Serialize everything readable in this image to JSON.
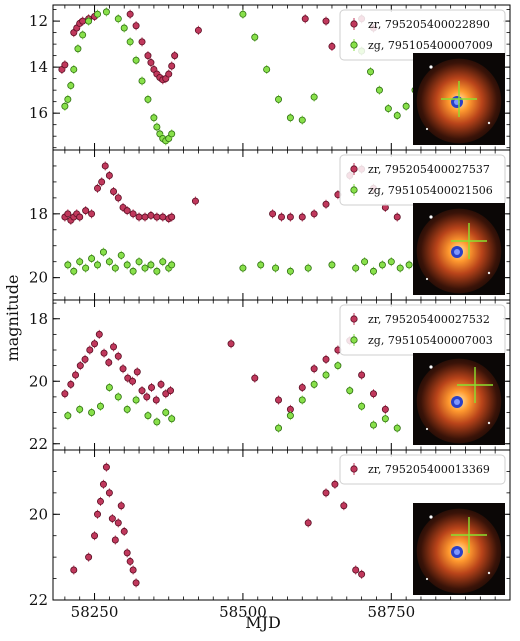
{
  "figure": {
    "xlabel": "MJD",
    "ylabel": "magnitude",
    "x_ticks": [
      "58250",
      "58500",
      "58750"
    ]
  },
  "colors": {
    "zr_face": "#c0385c",
    "zr_edge": "#5a0f24",
    "zg_face": "#88e04a",
    "zg_edge": "#2f6f12"
  },
  "chart_data": [
    {
      "type": "scatter",
      "xlim": [
        58180,
        58950
      ],
      "ylim": [
        11.3,
        17.6
      ],
      "y_ticks": [
        12,
        14,
        16
      ],
      "y_tick_labels": [
        "12",
        "14",
        "16"
      ],
      "inverted_y": true,
      "legend_position": "top-right",
      "inset_thumbnail": true,
      "series": [
        {
          "name": "zr, 795205400022890",
          "band": "zr",
          "x": [
            58195,
            58200,
            58215,
            58220,
            58225,
            58230,
            58240,
            58250,
            58310,
            58320,
            58330,
            58340,
            58345,
            58350,
            58355,
            58360,
            58365,
            58370,
            58375,
            58380,
            58385,
            58425,
            58605,
            58640,
            58650,
            58700,
            58720
          ],
          "y": [
            14.1,
            13.9,
            12.5,
            12.3,
            12.1,
            12.0,
            11.9,
            11.8,
            11.7,
            12.2,
            12.9,
            13.5,
            13.8,
            14.1,
            14.3,
            14.45,
            14.55,
            14.5,
            14.3,
            13.95,
            13.5,
            12.4,
            11.9,
            12.0,
            13.1,
            11.9,
            12.3
          ]
        },
        {
          "name": "zg, 795105400007009",
          "band": "zg",
          "x": [
            58200,
            58205,
            58210,
            58215,
            58222,
            58230,
            58240,
            58255,
            58270,
            58290,
            58300,
            58310,
            58320,
            58330,
            58340,
            58350,
            58355,
            58360,
            58365,
            58370,
            58375,
            58380,
            58500,
            58520,
            58540,
            58560,
            58580,
            58600,
            58620,
            58700,
            58715,
            58730,
            58745,
            58760,
            58775,
            58790
          ],
          "y": [
            15.7,
            15.4,
            14.8,
            14.1,
            13.2,
            12.6,
            12.0,
            11.7,
            11.6,
            11.9,
            12.3,
            12.9,
            13.7,
            14.6,
            15.4,
            16.2,
            16.6,
            16.9,
            17.1,
            17.2,
            17.1,
            16.9,
            11.7,
            12.7,
            14.1,
            15.4,
            16.2,
            16.3,
            15.3,
            13.3,
            14.2,
            15.0,
            15.8,
            16.1,
            15.7,
            15.0
          ]
        }
      ]
    },
    {
      "type": "scatter",
      "xlim": [
        58180,
        58950
      ],
      "ylim": [
        16.0,
        20.7
      ],
      "y_ticks": [
        18,
        20
      ],
      "y_tick_labels": [
        "18",
        "20"
      ],
      "inverted_y": true,
      "legend_position": "top-right",
      "inset_thumbnail": true,
      "series": [
        {
          "name": "zr, 795205400027537",
          "band": "zr",
          "x": [
            58200,
            58205,
            58210,
            58215,
            58220,
            58225,
            58235,
            58245,
            58255,
            58262,
            58268,
            58275,
            58282,
            58290,
            58298,
            58305,
            58315,
            58325,
            58335,
            58345,
            58355,
            58365,
            58375,
            58380,
            58420,
            58550,
            58565,
            58580,
            58600,
            58620,
            58640,
            58660,
            58680,
            58700,
            58720,
            58740,
            58760
          ],
          "y": [
            18.1,
            18.0,
            18.2,
            18.1,
            18.0,
            18.1,
            17.9,
            18.0,
            17.2,
            17.0,
            16.5,
            16.8,
            17.3,
            17.5,
            17.8,
            17.9,
            18.0,
            18.1,
            18.1,
            18.05,
            18.1,
            18.1,
            18.15,
            18.1,
            17.6,
            18.0,
            18.1,
            18.1,
            18.1,
            18.0,
            17.7,
            17.4,
            16.8,
            16.6,
            17.2,
            17.8,
            18.1
          ]
        },
        {
          "name": "zg, 795105400021506",
          "band": "zg",
          "x": [
            58205,
            58215,
            58225,
            58235,
            58245,
            58255,
            58265,
            58275,
            58285,
            58295,
            58305,
            58315,
            58325,
            58335,
            58345,
            58355,
            58365,
            58375,
            58380,
            58500,
            58530,
            58555,
            58580,
            58610,
            58650,
            58690,
            58705,
            58720,
            58735,
            58750,
            58765,
            58780
          ],
          "y": [
            19.6,
            19.8,
            19.5,
            19.7,
            19.4,
            19.6,
            19.2,
            19.5,
            19.7,
            19.3,
            19.6,
            19.8,
            19.5,
            19.7,
            19.6,
            19.8,
            19.5,
            19.7,
            19.6,
            19.7,
            19.6,
            19.7,
            19.8,
            19.7,
            19.6,
            19.7,
            19.5,
            19.8,
            19.6,
            19.5,
            19.7,
            19.6
          ]
        }
      ]
    },
    {
      "type": "scatter",
      "xlim": [
        58180,
        58950
      ],
      "ylim": [
        17.4,
        22.2
      ],
      "y_ticks": [
        18,
        20,
        22
      ],
      "y_tick_labels": [
        "18",
        "20",
        "22"
      ],
      "inverted_y": true,
      "legend_position": "top-right",
      "inset_thumbnail": true,
      "series": [
        {
          "name": "zr, 795205400027532",
          "band": "zr",
          "x": [
            58200,
            58210,
            58218,
            58226,
            58234,
            58242,
            58250,
            58258,
            58266,
            58274,
            58282,
            58290,
            58298,
            58306,
            58314,
            58322,
            58330,
            58338,
            58346,
            58354,
            58362,
            58370,
            58378,
            58480,
            58520,
            58560,
            58580,
            58600,
            58620,
            58640,
            58660,
            58680,
            58700,
            58720,
            58740
          ],
          "y": [
            20.4,
            20.1,
            19.8,
            19.5,
            19.3,
            19.0,
            18.8,
            18.5,
            19.1,
            19.4,
            18.9,
            19.2,
            19.6,
            19.9,
            20.0,
            19.7,
            20.3,
            20.5,
            20.2,
            20.6,
            20.1,
            20.4,
            20.3,
            18.8,
            19.9,
            20.6,
            20.9,
            20.2,
            19.6,
            19.3,
            19.0,
            18.7,
            19.8,
            20.4,
            20.9
          ]
        },
        {
          "name": "zg, 795105400007003",
          "band": "zg",
          "x": [
            58205,
            58225,
            58245,
            58260,
            58275,
            58290,
            58305,
            58320,
            58340,
            58355,
            58370,
            58380,
            58560,
            58580,
            58600,
            58620,
            58640,
            58660,
            58680,
            58700,
            58720,
            58740,
            58760
          ],
          "y": [
            21.1,
            20.9,
            21.0,
            20.8,
            20.2,
            20.5,
            20.9,
            20.6,
            21.1,
            21.3,
            21.0,
            21.2,
            21.5,
            21.1,
            20.6,
            20.1,
            19.8,
            19.5,
            20.3,
            20.8,
            21.4,
            21.2,
            21.5
          ]
        }
      ]
    },
    {
      "type": "scatter",
      "xlim": [
        58180,
        58950
      ],
      "ylim": [
        18.5,
        22.0
      ],
      "y_ticks": [
        20,
        22
      ],
      "y_tick_labels": [
        "20",
        "22"
      ],
      "inverted_y": true,
      "legend_position": "top-right",
      "inset_thumbnail": true,
      "series": [
        {
          "name": "zr, 795205400013369",
          "band": "zr",
          "x": [
            58215,
            58240,
            58250,
            58255,
            58260,
            58265,
            58270,
            58275,
            58280,
            58285,
            58290,
            58295,
            58300,
            58305,
            58310,
            58315,
            58320,
            58610,
            58640,
            58655,
            58670,
            58690,
            58700
          ],
          "y": [
            21.3,
            21.0,
            20.5,
            20.0,
            19.7,
            19.3,
            18.9,
            19.5,
            20.1,
            20.6,
            20.2,
            19.8,
            20.4,
            20.9,
            21.1,
            21.3,
            21.6,
            20.2,
            19.5,
            19.3,
            19.8,
            21.3,
            21.4
          ]
        }
      ]
    }
  ]
}
